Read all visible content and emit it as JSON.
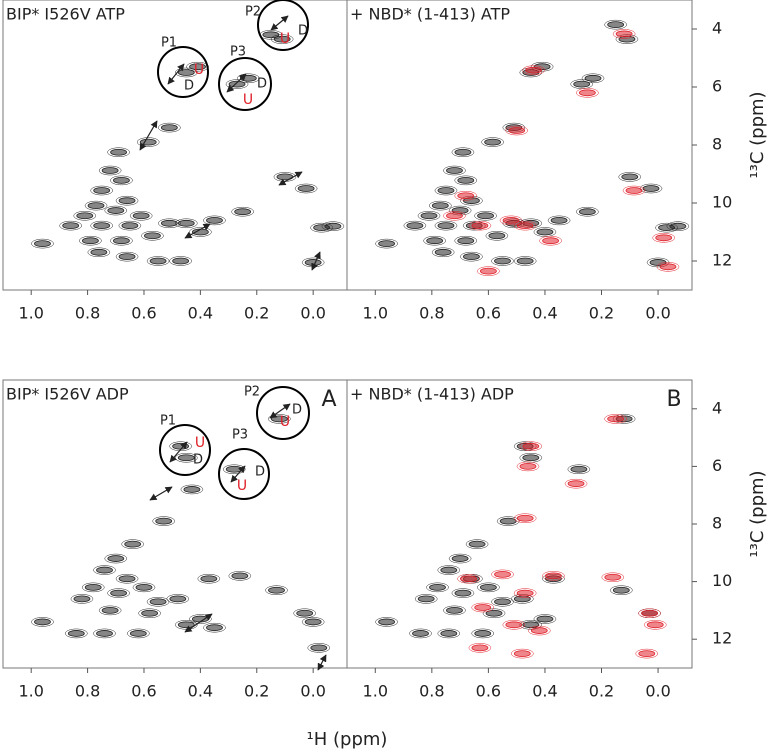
{
  "chart_data": [
    {
      "type": "scatter",
      "title": "BIP* I526V ATP",
      "xlim": [
        1.1,
        -0.12
      ],
      "ylim": [
        3,
        13
      ],
      "xticks": [
        {
          "value": 1,
          "label": "1.0"
        },
        0.8,
        0.6,
        0.4,
        0.2,
        {
          "value": 0,
          "label": "0.0"
        }
      ],
      "annotations": [
        "P1",
        "U",
        "D",
        "P2",
        "U",
        "D",
        "P3",
        "U",
        "D"
      ],
      "series": [
        {
          "color": "#222222",
          "x": [
            0.45,
            0.41,
            0.15,
            0.11,
            0.27,
            0.23,
            0.51,
            0.585,
            0.69,
            0.1,
            0.025,
            0.25,
            -0.03,
            -0.07,
            0.96,
            0.76,
            0.66,
            0.55,
            0.47,
            0.4,
            0.35,
            0.51,
            0.45,
            0.0,
            0.72,
            0.68,
            0.75,
            0.66,
            0.77,
            0.7,
            0.61,
            0.81,
            0.65,
            0.75,
            0.86,
            0.57,
            0.68,
            0.79
          ],
          "values": [
            5.5,
            5.3,
            4.2,
            4.35,
            5.9,
            5.7,
            7.4,
            7.9,
            8.25,
            9.1,
            9.5,
            10.3,
            10.85,
            10.8,
            11.4,
            11.7,
            11.85,
            12.0,
            12.0,
            11.0,
            10.6,
            10.7,
            10.7,
            12.05,
            8.88,
            9.22,
            9.57,
            9.92,
            10.09,
            10.26,
            10.44,
            10.44,
            10.78,
            10.78,
            10.78,
            11.13,
            11.3,
            11.3
          ]
        }
      ]
    },
    {
      "type": "scatter",
      "title": "+ NBD* (1-413) ATP",
      "xlim": [
        1.1,
        -0.12
      ],
      "ylim": [
        3,
        13
      ],
      "xticks": [
        {
          "value": 1,
          "label": "1.0"
        },
        0.8,
        0.6,
        0.4,
        0.2,
        {
          "value": 0,
          "label": "0.0"
        }
      ],
      "yticks": [
        4,
        6,
        8,
        10,
        12
      ],
      "ylabel": "¹³C (ppm)",
      "series": [
        {
          "color": "#222222",
          "x": [
            0.45,
            0.41,
            0.15,
            0.11,
            0.27,
            0.23,
            0.51,
            0.585,
            0.69,
            0.1,
            0.025,
            0.25,
            -0.03,
            -0.07,
            0.96,
            0.76,
            0.66,
            0.55,
            0.47,
            0.4,
            0.35,
            0.51,
            0.45,
            0.0,
            0.72,
            0.68,
            0.75,
            0.66,
            0.77,
            0.7,
            0.61,
            0.81,
            0.65,
            0.75,
            0.86,
            0.57,
            0.68,
            0.79
          ],
          "values": [
            5.5,
            5.3,
            3.85,
            4.35,
            5.9,
            5.7,
            7.4,
            7.9,
            8.25,
            9.1,
            9.5,
            10.3,
            10.85,
            10.8,
            11.4,
            11.7,
            11.85,
            12.0,
            12.0,
            11.0,
            10.6,
            10.7,
            10.7,
            12.05,
            8.88,
            9.22,
            9.57,
            9.92,
            10.09,
            10.26,
            10.44,
            10.44,
            10.78,
            10.78,
            10.78,
            11.13,
            11.3,
            11.3
          ]
        },
        {
          "color": "#e0202a",
          "x": [
            0.44,
            0.12,
            0.25,
            0.5,
            0.085,
            -0.035,
            0.68,
            0.72,
            0.47,
            0.63,
            0.6,
            0.38,
            -0.02,
            0.52
          ],
          "values": [
            5.42,
            4.17,
            6.2,
            7.5,
            9.57,
            12.2,
            9.75,
            10.44,
            10.78,
            10.78,
            12.35,
            11.3,
            11.2,
            10.6
          ]
        }
      ]
    },
    {
      "type": "scatter",
      "title": "BIP* I526V ADP",
      "panel_label": "A",
      "xlim": [
        1.1,
        -0.12
      ],
      "ylim": [
        3,
        13
      ],
      "xticks": [
        {
          "value": 1,
          "label": "1.0"
        },
        0.8,
        0.6,
        0.4,
        0.2,
        {
          "value": 0,
          "label": "0.0"
        }
      ],
      "xlabel": "¹H (ppm)",
      "annotations": [
        "P1",
        "U",
        "D",
        "P2",
        "U",
        "D",
        "P3",
        "U",
        "D"
      ],
      "series": [
        {
          "color": "#222222",
          "x": [
            0.47,
            0.45,
            0.12,
            0.28,
            0.43,
            0.53,
            0.64,
            0.7,
            0.74,
            0.66,
            0.78,
            0.69,
            0.6,
            0.82,
            0.55,
            0.72,
            0.48,
            0.37,
            0.26,
            0.13,
            0.03,
            0.0,
            0.96,
            0.84,
            0.74,
            0.62,
            0.45,
            0.4,
            0.35,
            -0.02,
            0.58
          ],
          "values": [
            5.3,
            5.7,
            4.35,
            6.1,
            6.8,
            7.9,
            8.7,
            9.2,
            9.6,
            9.9,
            10.2,
            10.4,
            10.2,
            10.6,
            10.7,
            11.0,
            10.6,
            9.9,
            9.8,
            10.3,
            11.1,
            11.4,
            11.4,
            11.8,
            11.8,
            11.8,
            11.5,
            11.3,
            11.6,
            12.3,
            11.1
          ]
        }
      ]
    },
    {
      "type": "scatter",
      "title": "+ NBD* (1-413) ADP",
      "panel_label": "B",
      "xlim": [
        1.1,
        -0.12
      ],
      "ylim": [
        3,
        13
      ],
      "xticks": [
        {
          "value": 1,
          "label": "1.0"
        },
        0.8,
        0.6,
        0.4,
        0.2,
        {
          "value": 0,
          "label": "0.0"
        }
      ],
      "yticks": [
        4,
        6,
        8,
        10,
        12
      ],
      "ylabel": "¹³C (ppm)",
      "series": [
        {
          "color": "#222222",
          "x": [
            0.47,
            0.45,
            0.12,
            0.28,
            0.53,
            0.64,
            0.7,
            0.74,
            0.66,
            0.78,
            0.69,
            0.6,
            0.82,
            0.55,
            0.72,
            0.48,
            0.37,
            0.13,
            0.03,
            0.96,
            0.84,
            0.74,
            0.62,
            0.45,
            0.4,
            0.58
          ],
          "values": [
            5.3,
            5.7,
            4.35,
            6.1,
            7.9,
            8.7,
            9.2,
            9.6,
            9.9,
            10.2,
            10.4,
            10.2,
            10.6,
            10.7,
            11.0,
            10.6,
            9.9,
            10.3,
            11.1,
            11.4,
            11.8,
            11.8,
            11.8,
            11.5,
            11.3,
            11.1
          ]
        },
        {
          "color": "#e0202a",
          "x": [
            0.15,
            0.45,
            0.46,
            0.29,
            0.47,
            0.55,
            0.37,
            0.16,
            0.67,
            0.47,
            0.62,
            0.51,
            0.42,
            0.03,
            0.01,
            0.63,
            0.48,
            0.04
          ],
          "values": [
            4.35,
            5.3,
            6.0,
            6.6,
            7.8,
            9.75,
            9.8,
            9.85,
            9.9,
            10.4,
            10.9,
            11.5,
            11.7,
            11.1,
            11.5,
            12.3,
            12.5,
            12.5
          ]
        }
      ]
    }
  ]
}
